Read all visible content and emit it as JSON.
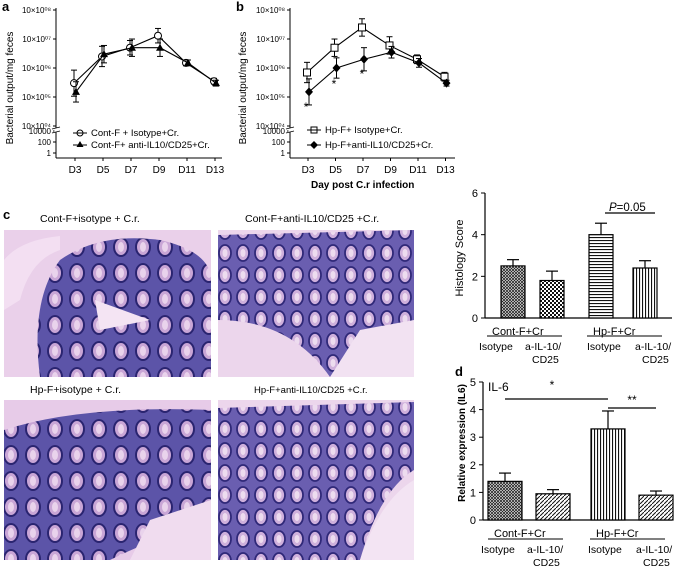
{
  "panel_labels": {
    "a": "a",
    "b": "b",
    "c": "c",
    "d": "d"
  },
  "panel_a": {
    "ylabel": "Bacterial output/mg feces",
    "yticks_upper": [
      "10×10⁰⁸",
      "10×10⁰⁷",
      "10×10⁰⁶",
      "10×10⁰⁵",
      "10×10⁰⁴"
    ],
    "yticks_lower": [
      "10000",
      "100",
      "1"
    ],
    "legend": [
      "Cont-F + Isotype+Cr.",
      "Cont-F+ anti-IL10/CD25+Cr."
    ]
  },
  "panel_b": {
    "ylabel": "Bacterial output/mg feces",
    "yticks_upper": [
      "10×10⁰⁸",
      "10×10⁰⁷",
      "10×10⁰⁶",
      "10×10⁰⁵",
      "10×10⁰⁴"
    ],
    "yticks_lower": [
      "10000",
      "100",
      "1"
    ],
    "legend": [
      "Hp-F+ Isotype+Cr.",
      "Hp-F+anti-IL10/CD25+Cr."
    ],
    "xlabel": "Day post C.r infection",
    "significance": [
      "*",
      "*",
      "*"
    ]
  },
  "histology": {
    "captions": [
      "Cont-F+isotype + C.r.",
      "Cont-F+anti-IL10/CD25 +C.r.",
      "Hp-F+isotype + C.r.",
      "Hp-F+anti-IL10/CD25 +C.r."
    ]
  },
  "panel_c_chart": {
    "ylabel": "Histology Score",
    "yticks": [
      "0",
      "2",
      "4",
      "6"
    ],
    "p_label": "P",
    "p_value": "=0.05",
    "group_labels": [
      "Cont-F+Cr",
      "Hp-F+Cr"
    ],
    "bar_labels": [
      "Isotype",
      "a-IL-10/",
      "CD25",
      "Isotype",
      "a-IL-10/",
      "CD25"
    ]
  },
  "panel_d": {
    "title": "IL-6",
    "ylabel": "Relative expression (IL6)",
    "yticks": [
      "0",
      "1",
      "2",
      "3",
      "4",
      "5"
    ],
    "significance": [
      "*",
      "**"
    ],
    "group_labels": [
      "Cont-F+Cr",
      "Hp-F+Cr"
    ],
    "bar_labels": [
      "Isotype",
      "a-IL-10/",
      "CD25",
      "Isotype",
      "a-IL-10/",
      "CD25"
    ]
  },
  "chart_data": [
    {
      "type": "line",
      "panel": "a",
      "title": "",
      "xlabel": "",
      "ylabel": "Bacterial output/mg feces",
      "x": [
        "D3",
        "D5",
        "D7",
        "D9",
        "D11",
        "D13"
      ],
      "y_scale": "log",
      "series": [
        {
          "name": "Cont-F + Isotype+Cr.",
          "values": [
            300000.0,
            2500000.0,
            5000000.0,
            13000000.0,
            1500000.0,
            350000.0
          ],
          "err": [
            0.45,
            0.35,
            0.25,
            0.25,
            0.1,
            0.1
          ]
        },
        {
          "name": "Cont-F+ anti-IL10/CD25+Cr.",
          "values": [
            150000.0,
            3000000.0,
            5000000.0,
            5000000.0,
            1500000.0,
            300000.0
          ],
          "err": [
            0.35,
            0.3,
            0.3,
            0.3,
            0.1,
            0.1
          ]
        }
      ]
    },
    {
      "type": "line",
      "panel": "b",
      "title": "",
      "xlabel": "Day post C.r infection",
      "ylabel": "Bacterial output/mg feces",
      "x": [
        "D3",
        "D5",
        "D7",
        "D9",
        "D11",
        "D13"
      ],
      "y_scale": "log",
      "series": [
        {
          "name": "Hp-F+ Isotype+Cr.",
          "values": [
            700000.0,
            5000000.0,
            25000000.0,
            6000000.0,
            2000000.0,
            500000.0
          ],
          "err": [
            0.35,
            0.3,
            0.3,
            0.3,
            0.15,
            0.15
          ]
        },
        {
          "name": "Hp-F+anti-IL10/CD25+Cr.",
          "values": [
            150000.0,
            1000000.0,
            2000000.0,
            3500000.0,
            1500000.0,
            300000.0
          ],
          "err": [
            0.45,
            0.35,
            0.4,
            0.2,
            0.15,
            0.1
          ]
        }
      ]
    },
    {
      "type": "bar",
      "panel": "c",
      "title": "",
      "ylabel": "Histology Score",
      "ylim": [
        0,
        6
      ],
      "categories": [
        "Cont-F+Cr Isotype",
        "Cont-F+Cr a-IL-10/CD25",
        "Hp-F+Cr Isotype",
        "Hp-F+Cr a-IL-10/CD25"
      ],
      "values": [
        2.5,
        1.8,
        4.0,
        2.4
      ],
      "err": [
        0.3,
        0.45,
        0.55,
        0.35
      ]
    },
    {
      "type": "bar",
      "panel": "d",
      "title": "IL-6",
      "ylabel": "Relative expression (IL6)",
      "ylim": [
        0,
        5
      ],
      "categories": [
        "Cont-F+Cr Isotype",
        "Cont-F+Cr a-IL-10/CD25",
        "Hp-F+Cr Isotype",
        "Hp-F+Cr a-IL-10/CD25"
      ],
      "values": [
        1.4,
        0.95,
        3.3,
        0.9
      ],
      "err": [
        0.3,
        0.15,
        0.65,
        0.15
      ]
    }
  ]
}
